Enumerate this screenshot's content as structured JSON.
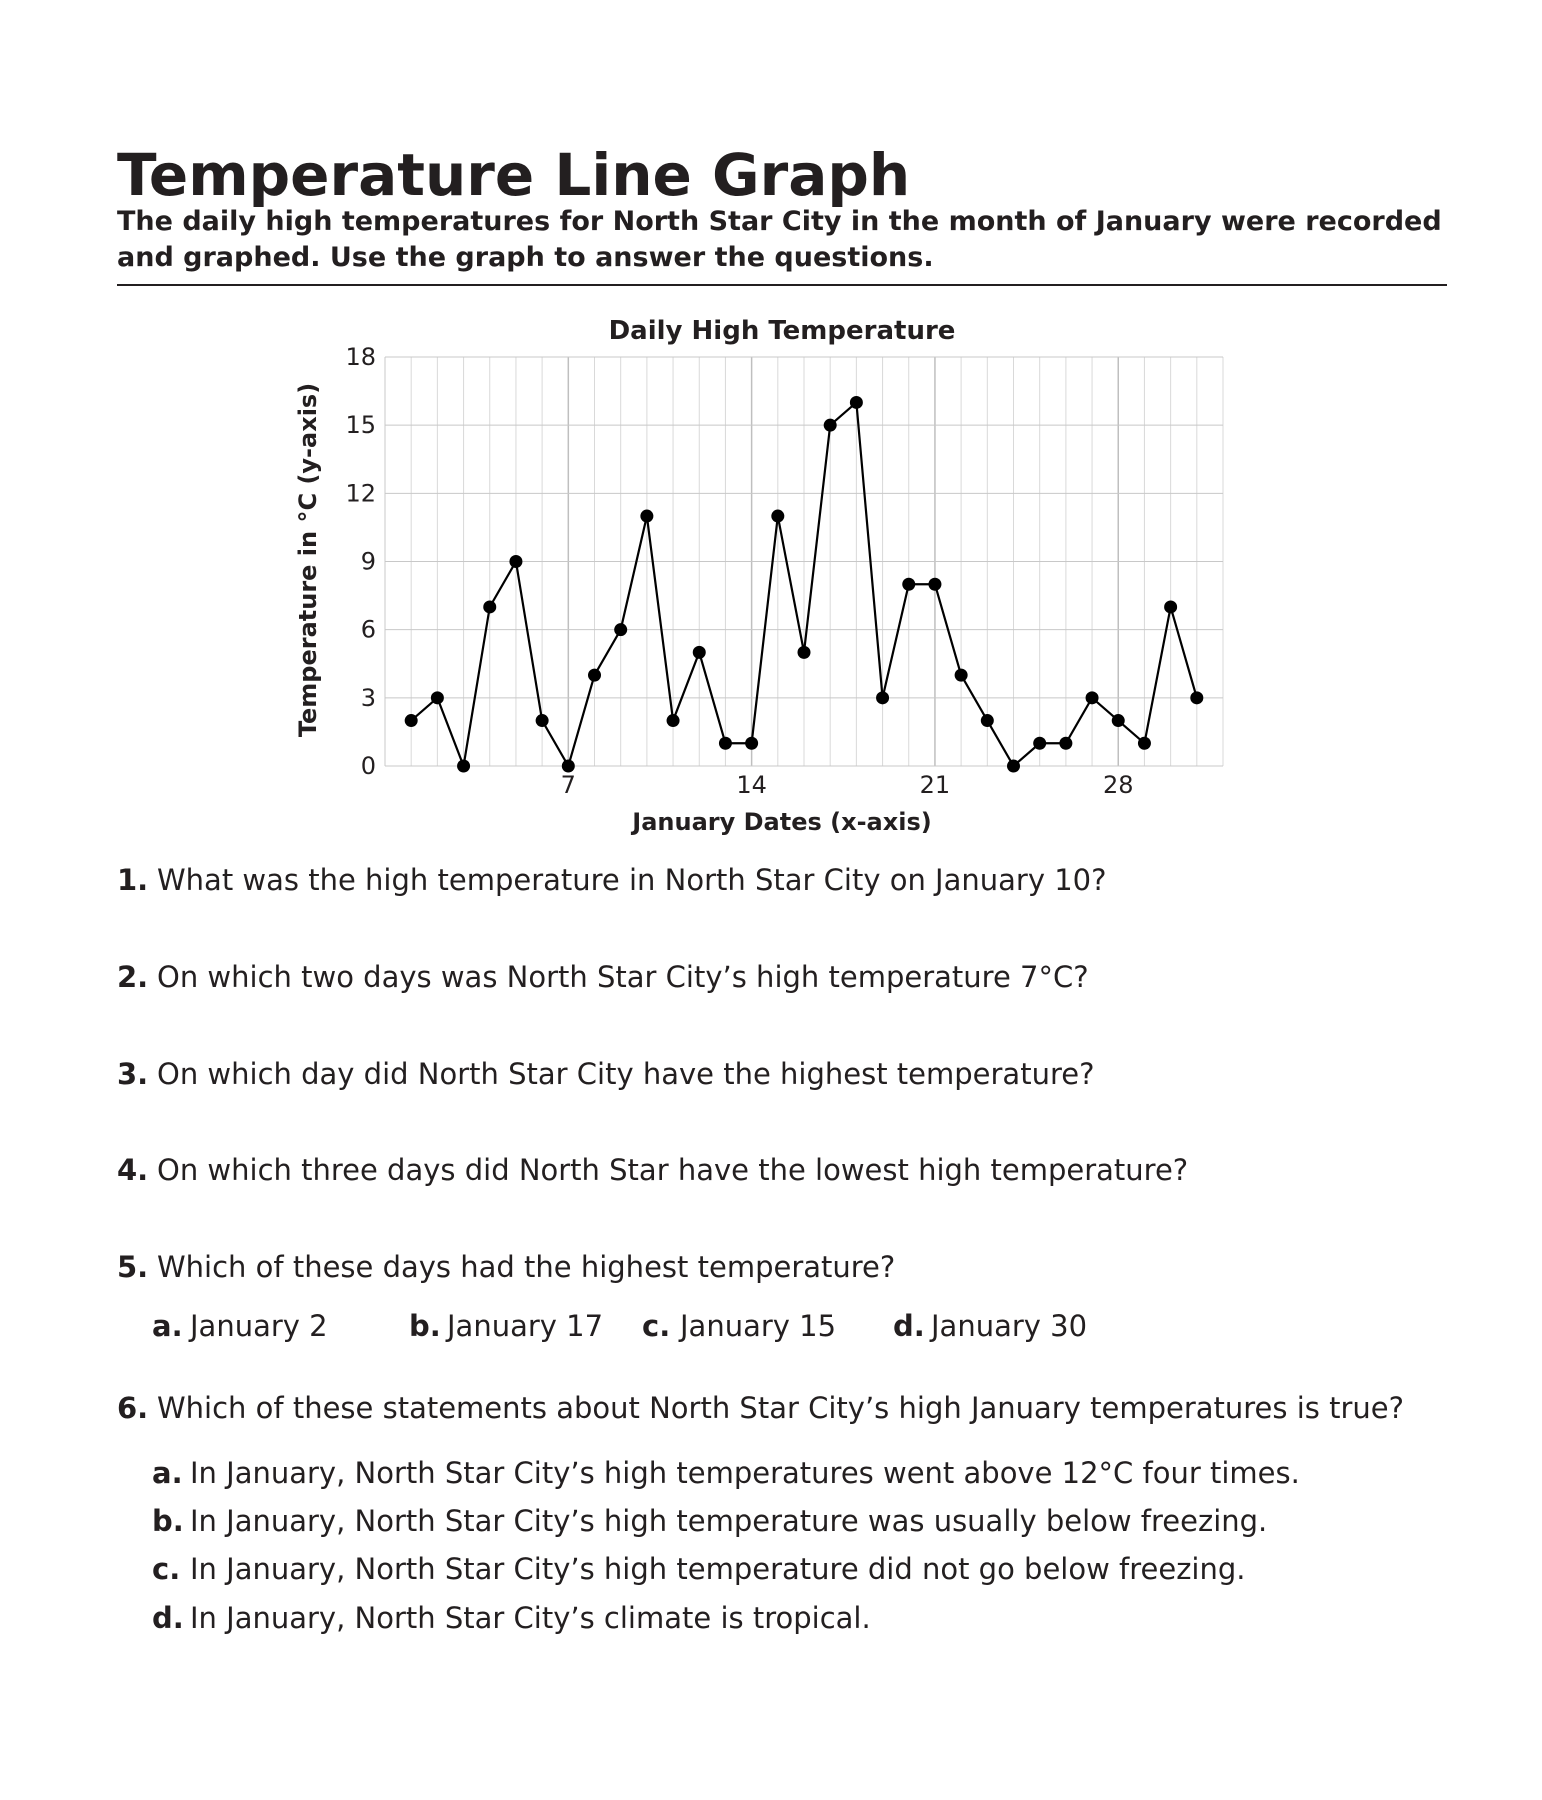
{
  "header": {
    "title": "Temperature Line Graph",
    "subtitle": "The daily high temperatures for North Star City in the month of January were recorded and graphed. Use the graph to answer the questions."
  },
  "chart_data": {
    "type": "line",
    "title": "Daily High Temperature",
    "xlabel": "January Dates (x-axis)",
    "ylabel": "Temperature in °C (y-axis)",
    "x": [
      1,
      2,
      3,
      4,
      5,
      6,
      7,
      8,
      9,
      10,
      11,
      12,
      13,
      14,
      15,
      16,
      17,
      18,
      19,
      20,
      21,
      22,
      23,
      24,
      25,
      26,
      27,
      28,
      29,
      30,
      31
    ],
    "series": [
      {
        "values": [
          2,
          3,
          0,
          7,
          9,
          2,
          0,
          4,
          6,
          11,
          2,
          5,
          1,
          1,
          11,
          5,
          15,
          16,
          3,
          8,
          8,
          4,
          2,
          0,
          1,
          1,
          3,
          2,
          1,
          7,
          3
        ]
      }
    ],
    "xlim": [
      0,
      32
    ],
    "ylim": [
      0,
      18
    ],
    "xticks": [
      7,
      14,
      21,
      28
    ],
    "xtick_labels": [
      "7",
      "14",
      "21",
      "28"
    ],
    "yticks": [
      0,
      3,
      6,
      9,
      12,
      15,
      18
    ],
    "ytick_labels": [
      "0",
      "3",
      "6",
      "9",
      "12",
      "15",
      "18"
    ],
    "grid": true,
    "line_color": "#000000",
    "marker_color": "#000000",
    "grid_color": "#d9d9d9"
  },
  "questions": [
    {
      "number": "1.",
      "text": "What was the high temperature in North Star City on January 10?"
    },
    {
      "number": "2.",
      "text": "On which two days was North Star City’s high temperature 7°C?"
    },
    {
      "number": "3.",
      "text": "On which day did North Star City have the highest temperature?"
    },
    {
      "number": "4.",
      "text": "On which three days did North Star have the lowest high temperature?"
    },
    {
      "number": "5.",
      "text": "Which of these days had the highest temperature?",
      "options": [
        {
          "letter": "a.",
          "text": "January 2"
        },
        {
          "letter": "b.",
          "text": "January 17"
        },
        {
          "letter": "c.",
          "text": "January 15"
        },
        {
          "letter": "d.",
          "text": "January 30"
        }
      ]
    },
    {
      "number": "6.",
      "text": "Which of these statements about North Star City’s high January temperatures is true?",
      "options": [
        {
          "letter": "a.",
          "text": "In January, North Star City’s high temperatures went above 12°C four times."
        },
        {
          "letter": "b.",
          "text": "In January, North Star City’s high temperature was usually below freezing."
        },
        {
          "letter": "c.",
          "text": "In January, North Star City’s high temperature did not go below freezing."
        },
        {
          "letter": "d.",
          "text": "In January, North Star City’s climate is tropical."
        }
      ]
    }
  ]
}
